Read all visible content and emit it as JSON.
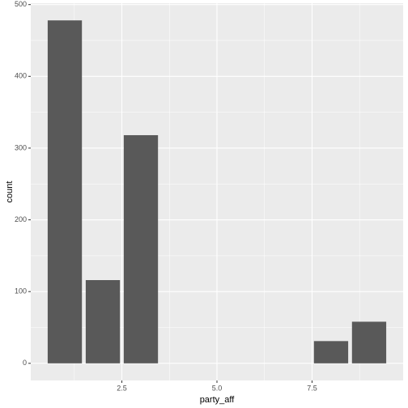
{
  "chart_data": {
    "type": "bar",
    "x": [
      1,
      2,
      3,
      8,
      9
    ],
    "values": [
      478,
      116,
      318,
      31,
      58
    ],
    "color": "#595959",
    "x_label": "party_aff",
    "y_label": "count",
    "xlim": [
      0.105,
      9.895
    ],
    "xticks": [
      2.5,
      {
        "value": 5,
        "label": "5.0"
      },
      7.5
    ],
    "ylim": [
      -23.9,
      501.9
    ],
    "yticks": [
      0,
      100,
      200,
      300,
      400,
      500
    ],
    "grid": true
  }
}
